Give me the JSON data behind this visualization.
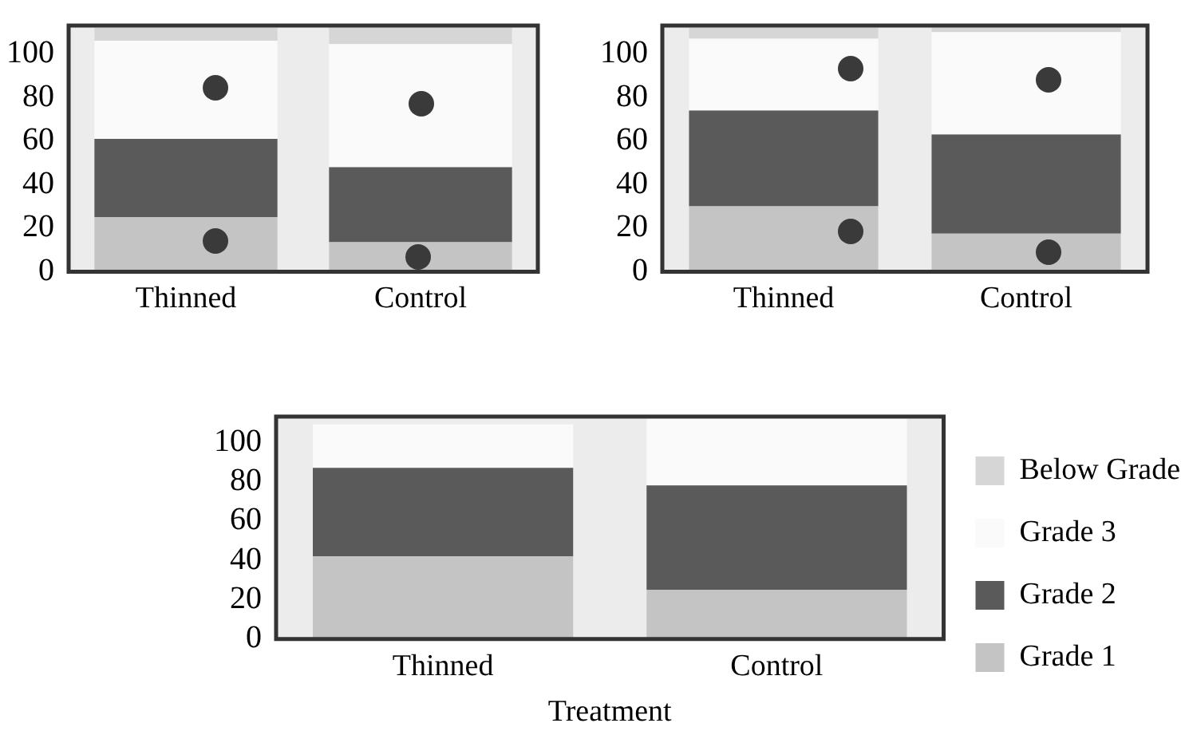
{
  "chart_data": [
    {
      "type": "bar",
      "stacked": true,
      "categories": [
        "Thinned",
        "Control"
      ],
      "ylim": [
        0,
        113
      ],
      "yticks": [
        0,
        20,
        40,
        60,
        80,
        100
      ],
      "grid": false,
      "legend": false,
      "series": [
        {
          "color": "#c4c4c4",
          "values": [
            25,
            13.5
          ]
        },
        {
          "color": "#5a5a5a",
          "values": [
            36,
            34.5
          ]
        },
        {
          "color": "#fafafa",
          "values": [
            45,
            56.5
          ]
        },
        {
          "color": "#d6d6d6",
          "values": [
            6,
            8
          ]
        }
      ]
    },
    {
      "type": "bar",
      "stacked": true,
      "categories": [
        "Thinned",
        "Control"
      ],
      "ylim": [
        0,
        113
      ],
      "yticks": [
        0,
        20,
        40,
        60,
        80,
        100
      ],
      "grid": false,
      "legend": false,
      "series": [
        {
          "color": "#c4c4c4",
          "values": [
            30,
            17.5
          ]
        },
        {
          "color": "#5a5a5a",
          "values": [
            44,
            45.5
          ]
        },
        {
          "color": "#fafafa",
          "values": [
            33,
            47
          ]
        },
        {
          "color": "#d6d6d6",
          "values": [
            5,
            3
          ]
        }
      ]
    },
    {
      "type": "bar",
      "stacked": true,
      "categories": [
        "Thinned",
        "Control"
      ],
      "xlabel": "Treatment",
      "ylim": [
        0,
        113
      ],
      "yticks": [
        0,
        20,
        40,
        60,
        80,
        100
      ],
      "grid": false,
      "legend": "right",
      "series": [
        {
          "name": "Grade 1",
          "color": "#c4c4c4",
          "values": [
            42,
            25
          ]
        },
        {
          "name": "Grade 2",
          "color": "#5a5a5a",
          "values": [
            45,
            53
          ]
        },
        {
          "name": "Grade 3",
          "color": "#fafafa",
          "values": [
            22,
            35
          ]
        },
        {
          "name": "Below Grade",
          "color": "#d6d6d6",
          "values": [
            null,
            null
          ]
        }
      ]
    }
  ]
}
